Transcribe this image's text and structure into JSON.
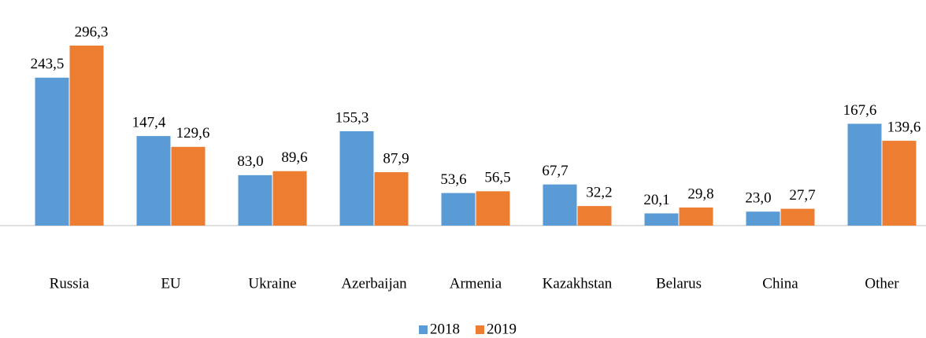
{
  "chart_data": {
    "type": "bar",
    "categories": [
      "Russia",
      "EU",
      "Ukraine",
      "Azerbaijan",
      "Armenia",
      "Kazakhstan",
      "Belarus",
      "China",
      "Other"
    ],
    "series": [
      {
        "name": "2018",
        "color": "#5b9bd5",
        "values": [
          243.5,
          147.4,
          83.0,
          155.3,
          53.6,
          67.7,
          20.1,
          23.0,
          167.6
        ],
        "value_labels": [
          "243,5",
          "147,4",
          "83,0",
          "155,3",
          "53,6",
          "67,7",
          "20,1",
          "23,0",
          "167,6"
        ]
      },
      {
        "name": "2019",
        "color": "#ed7d31",
        "values": [
          296.3,
          129.6,
          89.6,
          87.9,
          56.5,
          32.2,
          29.8,
          27.7,
          139.6
        ],
        "value_labels": [
          "296,3",
          "129,6",
          "89,6",
          "87,9",
          "56,5",
          "32,2",
          "29,8",
          "27,7",
          "139,6"
        ]
      }
    ],
    "legend": "bottom"
  }
}
